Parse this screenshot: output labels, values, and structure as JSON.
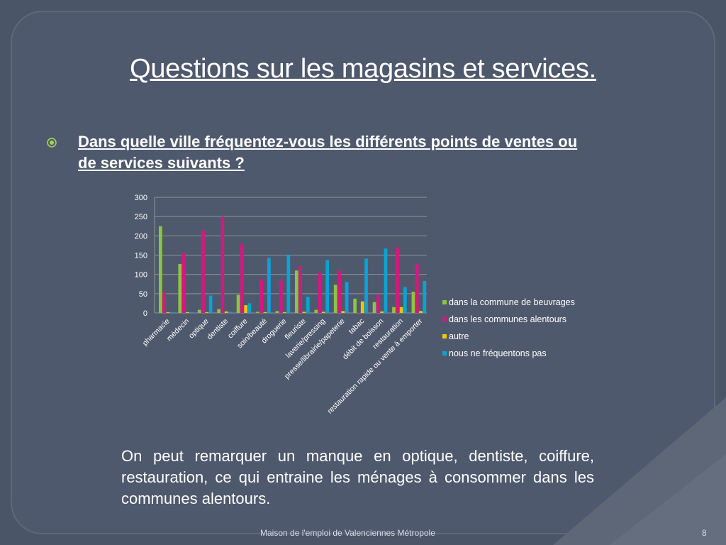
{
  "slide": {
    "title": "Questions sur les magasins et services.",
    "question": "Dans quelle ville fréquentez-vous les différents points de ventes ou de services suivants ?",
    "note": "On peut remarquer un manque en optique, dentiste, coiffure, restauration, ce qui entraine les ménages à consommer dans les communes alentours.",
    "footer": "Maison de l'emploi de Valenciennes Métropole",
    "page_number": "8",
    "bullet_icon": "target-bullet-icon"
  },
  "colors": {
    "background": "#4b5568",
    "accent_bullet": "#a3d44f",
    "series": [
      "#8cc63f",
      "#d6177f",
      "#f5c400",
      "#0aa3d6"
    ]
  },
  "chart_data": {
    "type": "bar",
    "categories": [
      "pharmacie",
      "médecin",
      "optique",
      "dentiste",
      "coiffure",
      "soin/beauté",
      "droguerie",
      "fleuriste",
      "laverie/pressing",
      "presse/librairie/papeterie",
      "tabac",
      "débit de boisson",
      "restauration",
      "restauration rapide ou vente à emporter"
    ],
    "series": [
      {
        "name": "dans la commune de beuvrages",
        "values": [
          225,
          127,
          8,
          10,
          47,
          3,
          5,
          110,
          8,
          73,
          37,
          28,
          15,
          55
        ]
      },
      {
        "name": "dans les communes alentours",
        "values": [
          55,
          155,
          215,
          250,
          180,
          88,
          85,
          122,
          103,
          110,
          2,
          47,
          170,
          127
        ]
      },
      {
        "name": "autre",
        "values": [
          2,
          2,
          2,
          4,
          20,
          2,
          2,
          3,
          3,
          5,
          30,
          4,
          15,
          5
        ]
      },
      {
        "name": "nous ne fréquentons pas",
        "values": [
          2,
          2,
          45,
          3,
          25,
          143,
          150,
          42,
          137,
          80,
          141,
          167,
          67,
          83
        ]
      }
    ],
    "yticks": [
      0,
      50,
      100,
      150,
      200,
      250,
      300
    ],
    "ylim": [
      0,
      300
    ],
    "grid": true,
    "legend": "right"
  }
}
